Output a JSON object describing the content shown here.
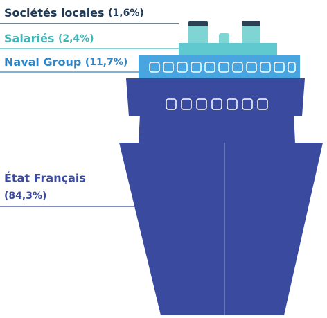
{
  "segments": [
    {
      "name": "Sociétés locales",
      "share": "(1,6%)"
    },
    {
      "name": "Salariés",
      "share": "(2,4%)"
    },
    {
      "name": "Naval Group",
      "share": "(11,7%)"
    },
    {
      "name": "État Français",
      "share": "(84,3%)"
    }
  ]
}
